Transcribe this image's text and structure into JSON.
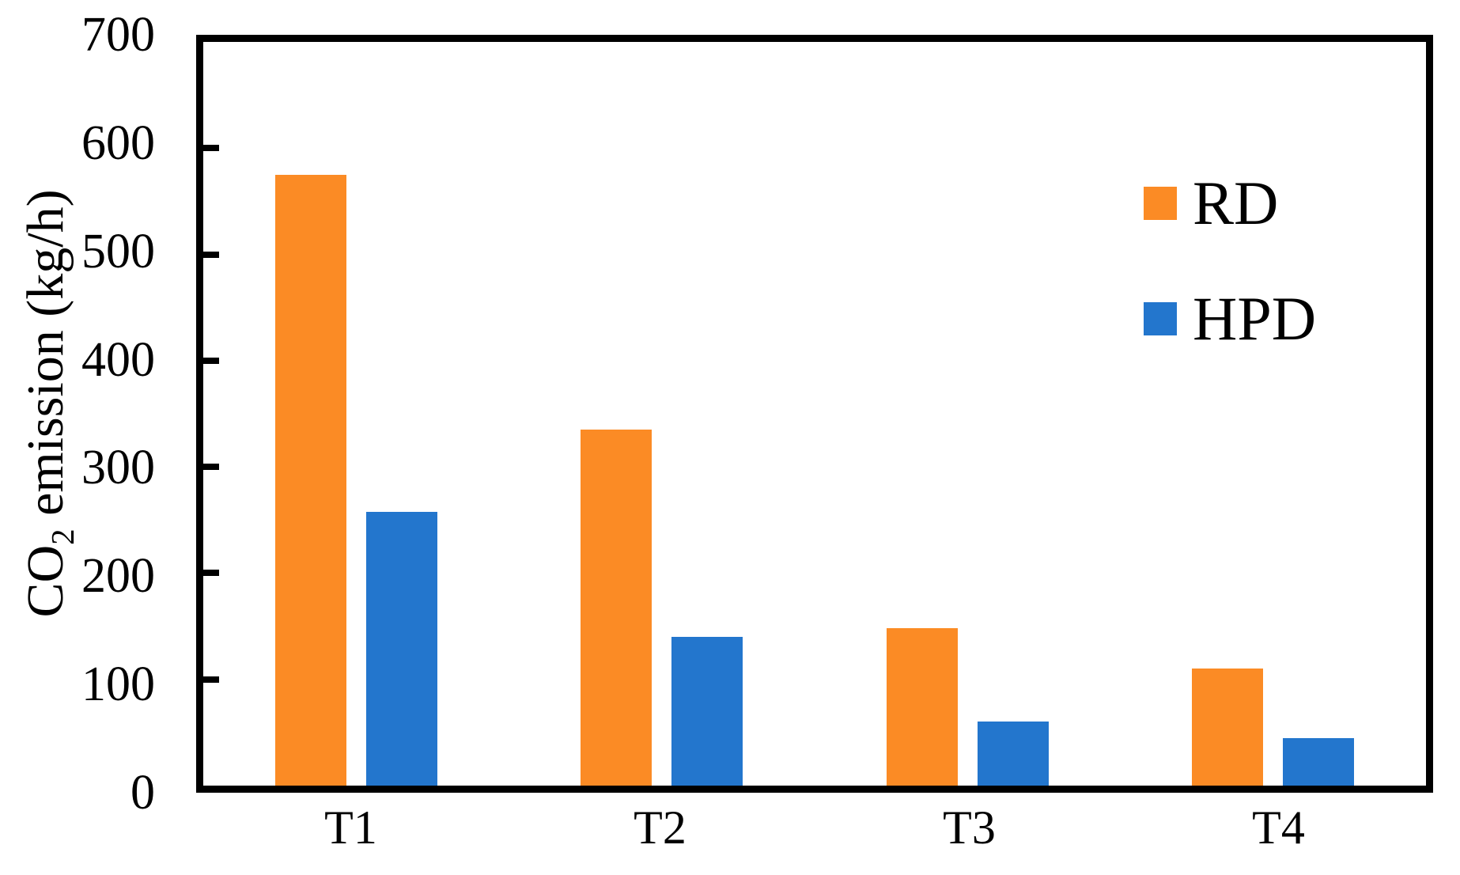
{
  "chart_data": {
    "type": "bar",
    "categories": [
      "T1",
      "T2",
      "T3",
      "T4"
    ],
    "series": [
      {
        "name": "RD",
        "color": "#FB8B25",
        "values": [
          575,
          335,
          148,
          110
        ]
      },
      {
        "name": "HPD",
        "color": "#2376CD",
        "values": [
          258,
          140,
          60,
          45
        ]
      }
    ],
    "title": "",
    "xlabel": "",
    "ylabel": "CO2 emission (kg/h)",
    "ylabel_parts": {
      "prefix": "CO",
      "subscript": "2",
      "suffix": " emission (kg/h)"
    },
    "ylim": [
      0,
      700
    ],
    "yticks": [
      0,
      100,
      200,
      300,
      400,
      500,
      600,
      700
    ],
    "grid": false,
    "legend_position": "inside-top-right",
    "frame_color": "#000000",
    "background_color": "#FFFFFF"
  }
}
